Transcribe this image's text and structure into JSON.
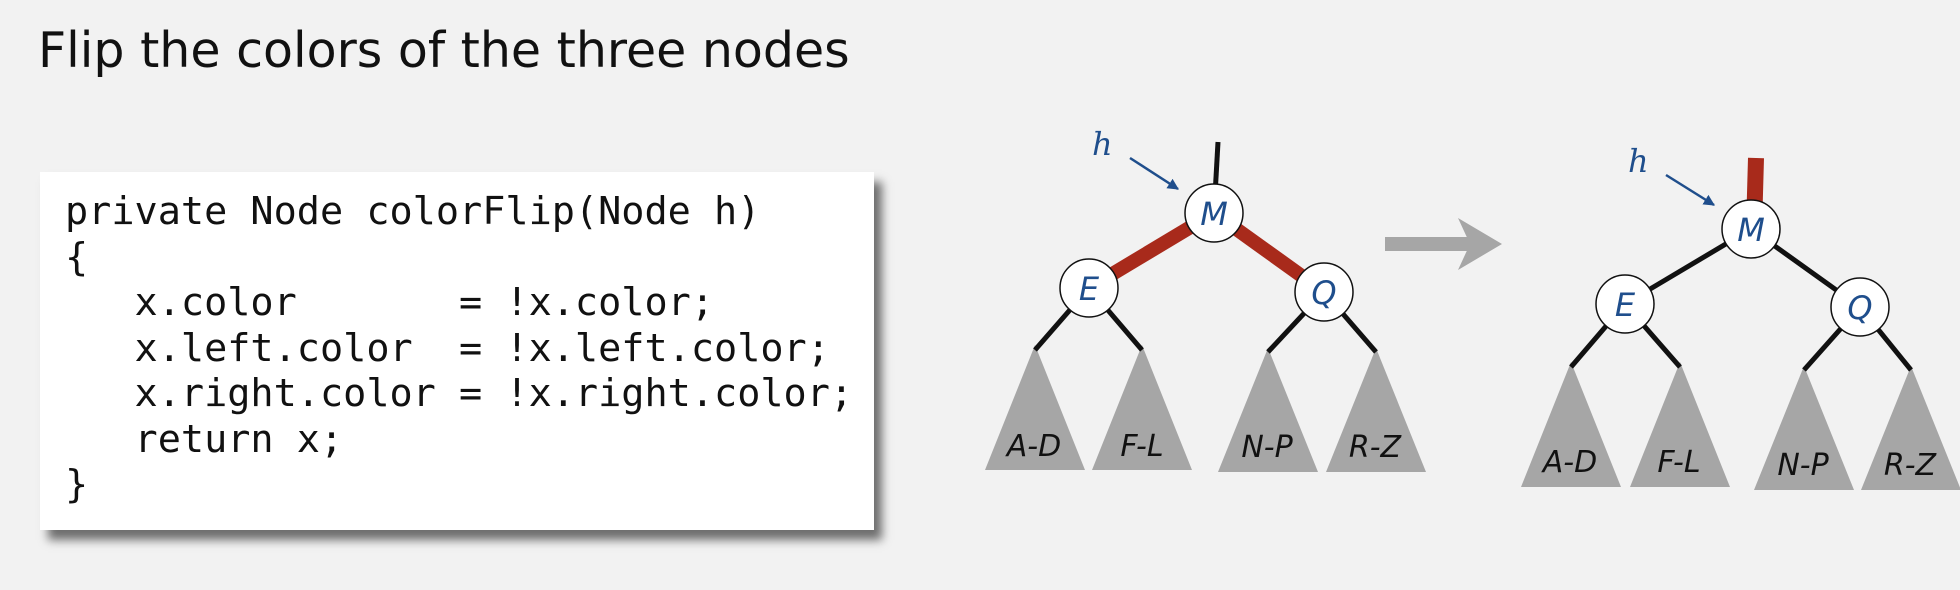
{
  "title": "Flip the colors of the three nodes",
  "code": {
    "lines": [
      "private Node colorFlip(Node h)",
      "{",
      "   x.color       = !x.color;",
      "   x.left.color  = !x.left.color;",
      "   x.right.color = !x.right.color;",
      "   return x;",
      "}"
    ]
  },
  "colors": {
    "red_link": "#a82a1b",
    "black_link": "#111111",
    "node_label": "#1f4e8c",
    "subtree_fill": "#a6a6a6",
    "arrow": "#a6a6a6",
    "pointer_arrow": "#1f4e8c"
  },
  "diagram": {
    "pointer_label": "h",
    "nodes": {
      "root": "M",
      "left": "E",
      "right": "Q"
    },
    "subtrees": [
      "A-D",
      "F-L",
      "N-P",
      "R-Z"
    ],
    "before": {
      "parent_link": "black",
      "child_links": "red"
    },
    "after": {
      "parent_link": "red",
      "child_links": "black"
    },
    "transition_icon": "right-arrow-icon"
  }
}
